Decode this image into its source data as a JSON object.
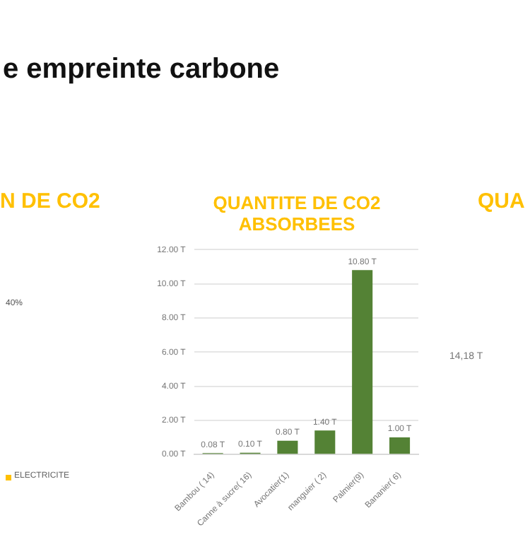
{
  "chart_data": [
    {
      "type": "other",
      "title": "e empreinte carbone"
    },
    {
      "type": "other",
      "title": "N DE CO2",
      "annotations": [
        "40%",
        "ELECTRICITE"
      ]
    },
    {
      "type": "bar",
      "title": "QUANTITE DE CO2 ABSORBEES",
      "categories": [
        "Bambou ( 14)",
        "Canne à sucre( 16)",
        "Avocatier(1)",
        "manguier ( 2)",
        "Palmier(9)",
        "Bananier( 6)"
      ],
      "values": [
        0.08,
        0.1,
        0.8,
        1.4,
        10.8,
        1.0
      ],
      "value_labels": [
        "0.08 T",
        "0.10 T",
        "0.80 T",
        "1.40 T",
        "10.80 T",
        "1.00 T"
      ],
      "color": "#548235",
      "ylim": [
        0,
        12
      ],
      "yticks": [
        {
          "value": 0,
          "label": "0.00 T"
        },
        {
          "value": 2,
          "label": "2.00 T"
        },
        {
          "value": 4,
          "label": "4.00 T"
        },
        {
          "value": 6,
          "label": "6.00 T"
        },
        {
          "value": 8,
          "label": "8.00 T"
        },
        {
          "value": 10,
          "label": "10.00 T"
        },
        {
          "value": 12,
          "label": "12.00 T"
        }
      ],
      "grid": "y",
      "legend": false
    },
    {
      "type": "other",
      "title": "QUA",
      "annotations": [
        "14,18 T"
      ]
    }
  ]
}
